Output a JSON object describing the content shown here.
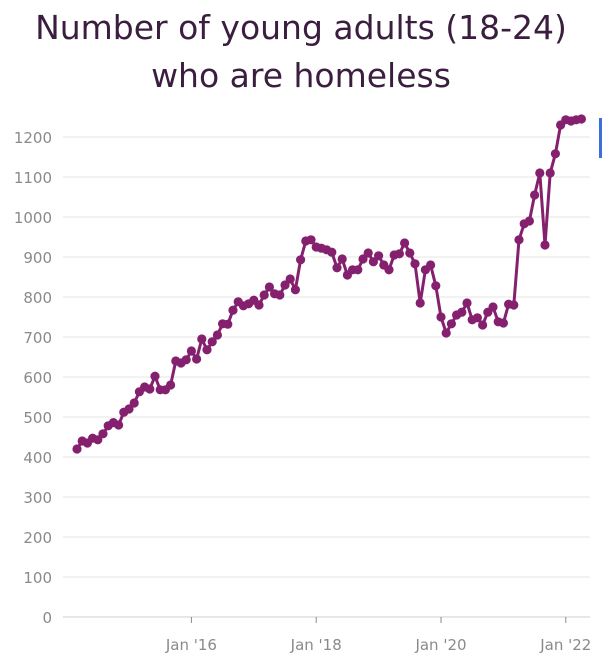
{
  "title_line1": "Number of young adults (18-24)",
  "title_line2": "who are homeless",
  "chart_data": {
    "type": "line",
    "title": "Number of young adults (18-24) who are homeless",
    "xlabel": "",
    "ylabel": "",
    "ylim": [
      0,
      1200
    ],
    "yticks": [
      0,
      100,
      200,
      300,
      400,
      500,
      600,
      700,
      800,
      900,
      1000,
      1100,
      1200
    ],
    "xticks": [
      {
        "label": "Jan '16",
        "month": "2016-01"
      },
      {
        "label": "Jan '18",
        "month": "2018-01"
      },
      {
        "label": "Jan '20",
        "month": "2020-01"
      },
      {
        "label": "Jan '22",
        "month": "2022-01"
      }
    ],
    "grid": true,
    "legend": "none",
    "line_color": "#85206f",
    "series": [
      {
        "start_month": "2014-03",
        "frequency": "monthly",
        "values": [
          420,
          440,
          435,
          447,
          443,
          458,
          478,
          486,
          480,
          512,
          520,
          535,
          563,
          575,
          570,
          602,
          568,
          568,
          580,
          640,
          635,
          643,
          665,
          645,
          695,
          668,
          688,
          705,
          733,
          732,
          767,
          788,
          778,
          783,
          792,
          780,
          805,
          825,
          808,
          805,
          830,
          845,
          818,
          893,
          940,
          943,
          925,
          922,
          918,
          912,
          873,
          895,
          855,
          868,
          868,
          895,
          910,
          888,
          903,
          880,
          868,
          905,
          908,
          935,
          910,
          883,
          785,
          868,
          880,
          828,
          750,
          710,
          733,
          755,
          762,
          785,
          743,
          748,
          730,
          762,
          775,
          738,
          735,
          782,
          780,
          943,
          983,
          990,
          1055,
          1110,
          930,
          1110,
          1158,
          1230,
          1243,
          1240,
          1243,
          1245
        ]
      }
    ]
  }
}
